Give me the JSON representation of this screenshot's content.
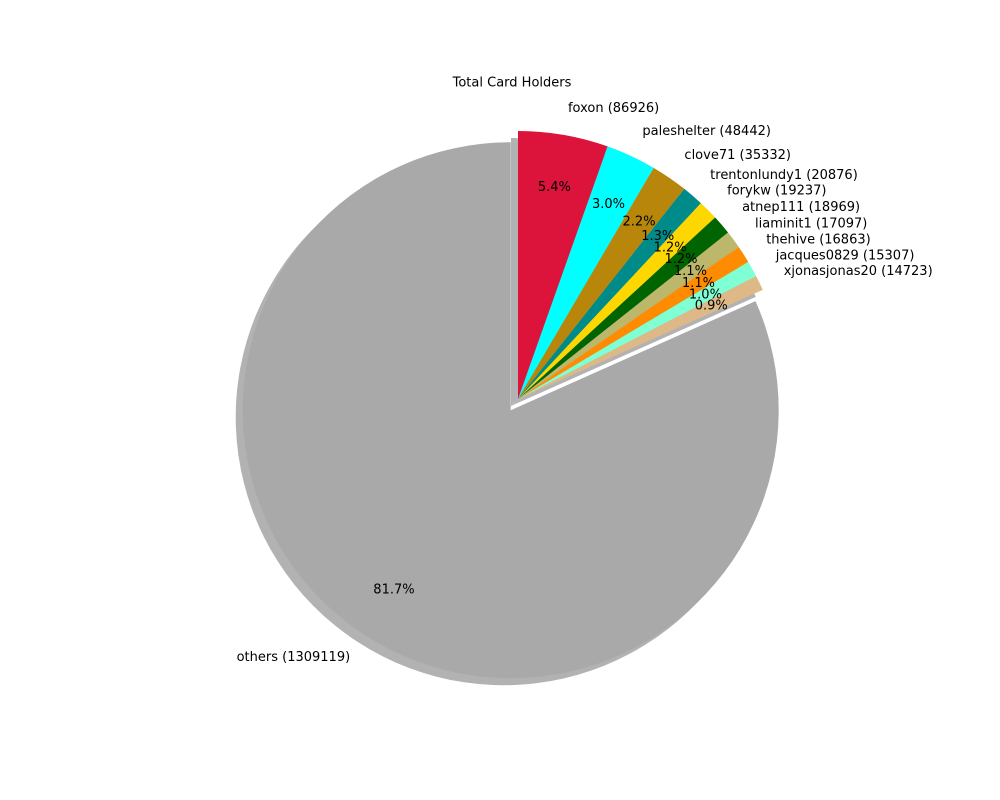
{
  "chart_data": {
    "type": "pie",
    "title": "Total Card Holders",
    "categories": [
      "others (1309119)",
      "xjonasjonas20 (14723)",
      "jacques0829 (15307)",
      "thehive (16863)",
      "liaminit1 (17097)",
      "atnep111 (18969)",
      "forykw (19237)",
      "trentonlundy1 (20876)",
      "clove71 (35332)",
      "paleshelter (48442)",
      "foxon (86926)"
    ],
    "values": [
      1309119,
      14723,
      15307,
      16863,
      17097,
      18969,
      19237,
      20876,
      35332,
      48442,
      86926
    ],
    "percentages": [
      81.7,
      0.9,
      1.0,
      1.1,
      1.1,
      1.2,
      1.2,
      1.3,
      2.2,
      3.0,
      5.4
    ],
    "percentage_labels": [
      "81.7%",
      "0.9%",
      "1.0%",
      "1.1%",
      "1.1%",
      "1.2%",
      "1.2%",
      "1.3%",
      "2.2%",
      "3.0%",
      "5.4%"
    ],
    "colors": [
      "#a9a9a9",
      "#deb887",
      "#7fffd4",
      "#ff8c00",
      "#bdb76b",
      "#006400",
      "#ffd700",
      "#008b8b",
      "#b8860b",
      "#00ffff",
      "#dc143c"
    ],
    "explode": [
      0.05,
      0,
      0,
      0,
      0,
      0,
      0,
      0,
      0,
      0,
      0
    ],
    "start_angle": 90,
    "shadow": true
  }
}
